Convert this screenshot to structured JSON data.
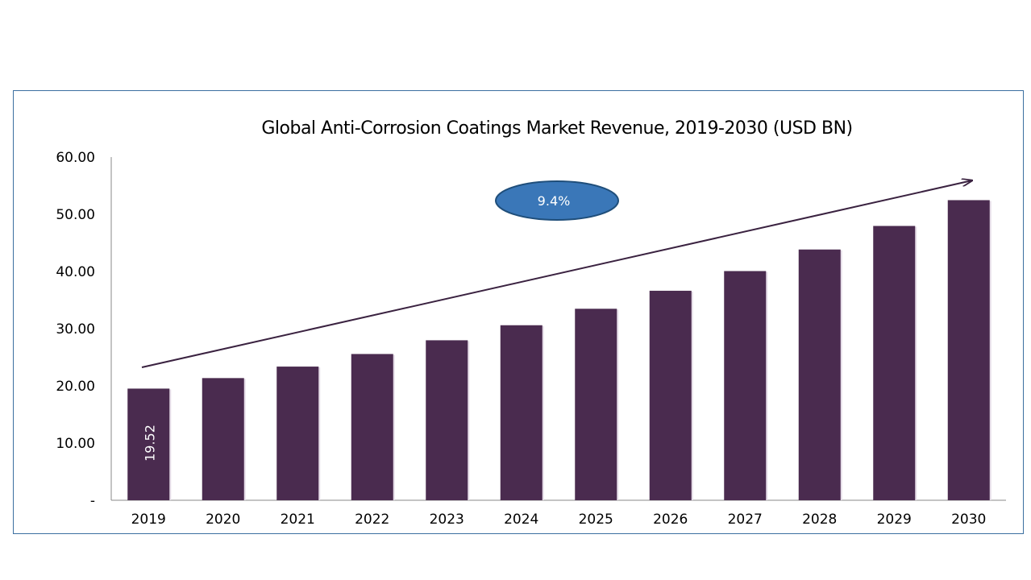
{
  "chart_data": {
    "type": "bar",
    "title": "Global Anti-Corrosion Coatings Market Revenue, 2019-2030 (USD BN)",
    "categories": [
      "2019",
      "2020",
      "2021",
      "2022",
      "2023",
      "2024",
      "2025",
      "2026",
      "2027",
      "2028",
      "2029",
      "2030"
    ],
    "values": [
      19.52,
      21.36,
      23.37,
      25.57,
      27.97,
      30.6,
      33.48,
      36.63,
      40.07,
      43.84,
      47.96,
      52.47
    ],
    "ylim": [
      0,
      60
    ],
    "yticks": [
      "-",
      "10.00",
      "20.00",
      "30.00",
      "40.00",
      "50.00",
      "60.00"
    ],
    "data_labels": [
      {
        "index": 0,
        "text": "19.52"
      }
    ],
    "annotation": {
      "cagr_text": "9.4%"
    },
    "grid": false,
    "legend": "none",
    "colors": {
      "bar": "#4a2b4f",
      "arrow": "#3a2240",
      "ellipse_fill": "#3a77b8",
      "ellipse_stroke": "#1f4e7a",
      "frame": "#3b6fa0"
    }
  }
}
